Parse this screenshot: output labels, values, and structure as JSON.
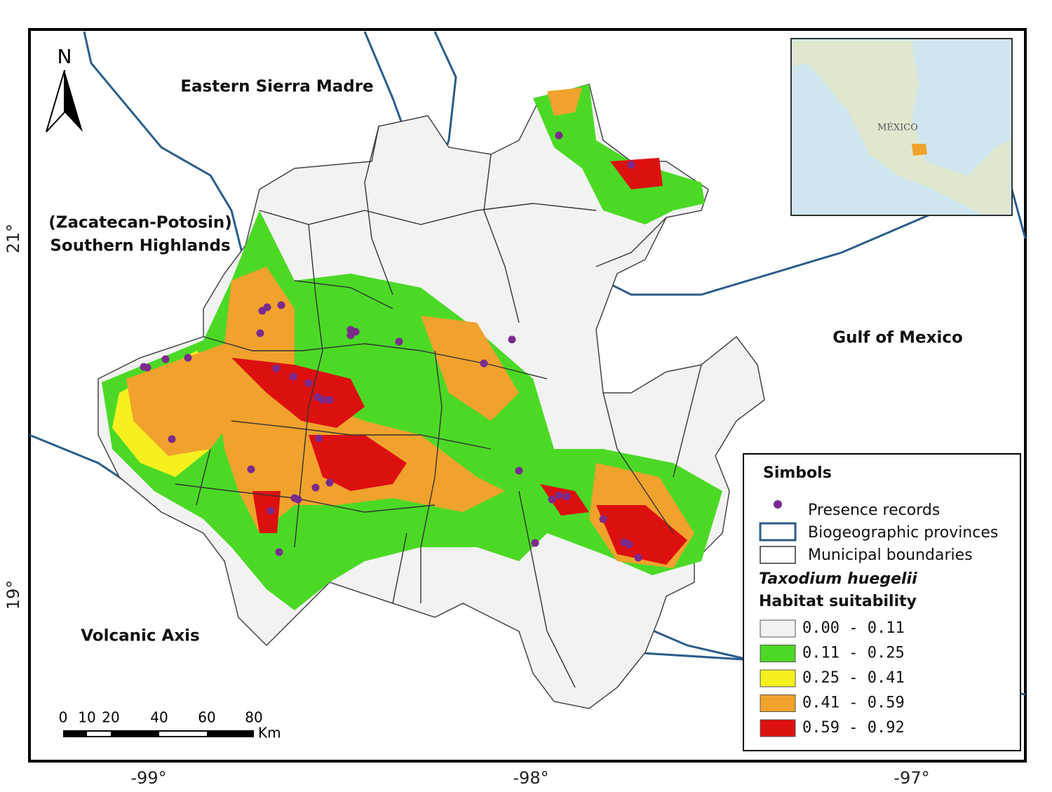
{
  "map": {
    "north_arrow": "N",
    "regions": {
      "eastern_sierra_madre": "Eastern Sierra Madre",
      "southern_highlands_1": "(Zacatecan-Potosin)",
      "southern_highlands_2": "Southern Highlands",
      "gulf": "Gulf of Mexico",
      "volcanic_axis": "Volcanic Axis"
    },
    "inset_label": "MÉXICO",
    "latitude_labels": [
      "21°",
      "19°"
    ],
    "longitude_labels": [
      "-99°",
      "-98°",
      "-97°"
    ],
    "scale_bar": {
      "labels": [
        "0",
        "10",
        "20",
        "40",
        "60",
        "80"
      ],
      "unit": "Km"
    },
    "legend": {
      "title": "Simbols",
      "symbols": [
        "Presence records",
        "Biogeographic provinces",
        "Municipal boundaries"
      ],
      "species": "Taxodium huegelii",
      "subtitle": "Habitat suitability",
      "classes": [
        {
          "label": "0.00 - 0.11",
          "color": "#f2f2f2"
        },
        {
          "label": "0.11 - 0.25",
          "color": "#4cd926"
        },
        {
          "label": "0.25 - 0.41",
          "color": "#f5f01e"
        },
        {
          "label": "0.41 - 0.59",
          "color": "#f0a22c"
        },
        {
          "label": "0.59 - 0.92",
          "color": "#dd1010"
        }
      ]
    }
  }
}
